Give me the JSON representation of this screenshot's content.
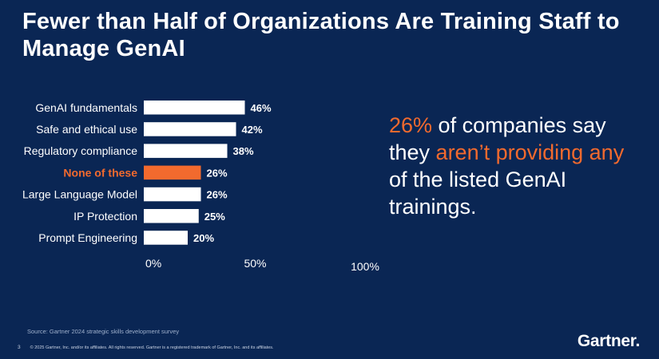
{
  "title": "Fewer than Half of Organizations Are Training Staff to Manage GenAI",
  "callout": {
    "p1": "26%",
    "p2": " of companies say they ",
    "p3": "aren’t providing any",
    "p4": " of the listed GenAI trainings."
  },
  "source": "Source: Gartner 2024 strategic skills development survey",
  "footer": {
    "page": "3",
    "copyright": "© 2025 Gartner, Inc. and/or its affiliates. All rights reserved. Gartner is a registered trademark of Gartner, Inc. and its affiliates."
  },
  "logo": "Gartner.",
  "colors": {
    "background": "#0a2654",
    "bar": "#ffffff",
    "highlight": "#f26a2e",
    "text": "#ffffff"
  },
  "chart_data": {
    "type": "bar",
    "orientation": "horizontal",
    "categories": [
      "GenAI fundamentals",
      "Safe and ethical use",
      "Regulatory compliance",
      "None of these",
      "Large Language Model",
      "IP Protection",
      "Prompt Engineering"
    ],
    "values": [
      46,
      42,
      38,
      26,
      26,
      25,
      20
    ],
    "value_labels": [
      "46%",
      "42%",
      "38%",
      "26%",
      "26%",
      "25%",
      "20%"
    ],
    "highlight_index": 3,
    "xlim": [
      0,
      100
    ],
    "x_ticks": [
      "0%",
      "50%",
      "100%"
    ],
    "grid": false
  }
}
